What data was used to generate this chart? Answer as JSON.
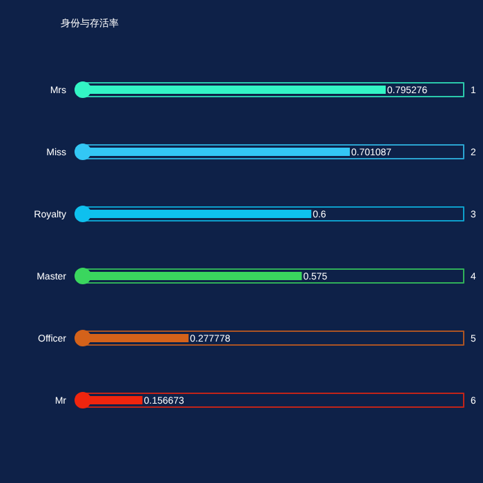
{
  "chart_data": {
    "type": "bar",
    "orientation": "horizontal",
    "title": "身份与存活率",
    "categories": [
      "Mrs",
      "Miss",
      "Royalty",
      "Master",
      "Officer",
      "Mr"
    ],
    "values": [
      0.795276,
      0.701087,
      0.6,
      0.575,
      0.277778,
      0.156673
    ],
    "colors": [
      "#33f5c5",
      "#33c7f5",
      "#0ec0ee",
      "#3ad65e",
      "#d4621a",
      "#f0250e"
    ],
    "xlim": [
      0,
      1
    ],
    "data_labels": true,
    "tick_labels": "y",
    "annotations": [
      "1",
      "2",
      "3",
      "4",
      "5",
      "6"
    ]
  }
}
